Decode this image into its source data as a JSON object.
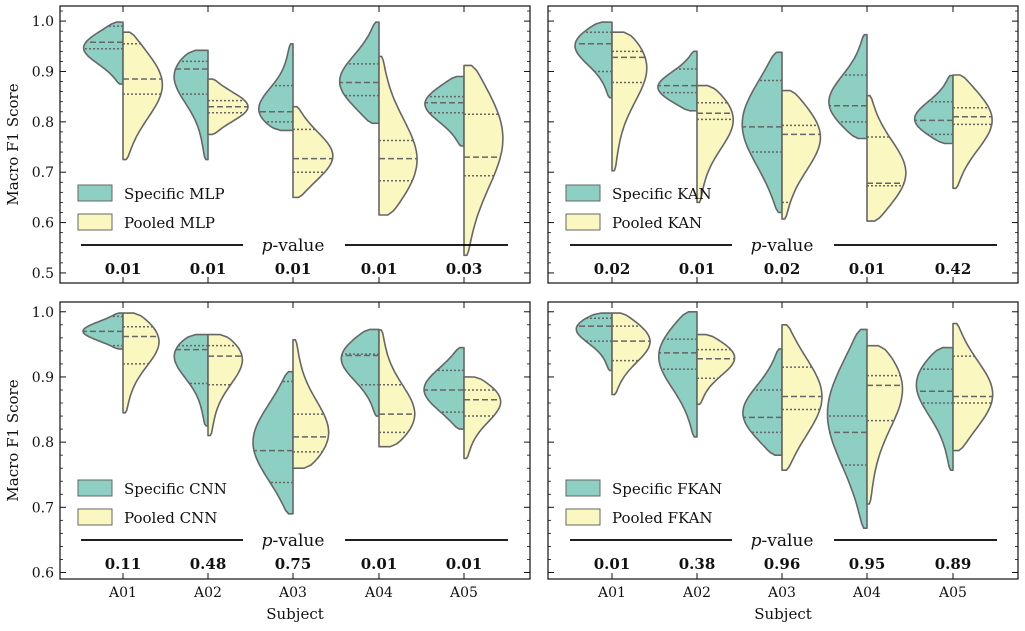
{
  "colors": {
    "specific": "#8ecfc3",
    "pooled": "#fbf7c0",
    "outline": "#666666",
    "quartile_line": "#666666",
    "axis": "#111111"
  },
  "chart_data": [
    {
      "type": "violin",
      "ylabel": "Macro F1 Score",
      "xlabel": "",
      "ylim": [
        0.48,
        1.03
      ],
      "yticks": [
        "0.5",
        "0.6",
        "0.7",
        "0.8",
        "0.9",
        "1.0"
      ],
      "ytick_values": [
        0.5,
        0.6,
        0.7,
        0.8,
        0.9,
        1.0
      ],
      "categories": [
        "A01",
        "A02",
        "A03",
        "A04",
        "A05"
      ],
      "show_xticklabels": false,
      "legend": [
        "Specific MLP",
        "Pooled MLP"
      ],
      "pvalue_title": "-value",
      "pvalue_italic": "p",
      "pvalues": [
        "0.01",
        "0.01",
        "0.01",
        "0.01",
        "0.03"
      ],
      "series": [
        {
          "name": "Specific MLP",
          "side": "left",
          "violins": [
            {
              "min": 0.875,
              "max": 0.998,
              "median": 0.958,
              "q1": 0.945,
              "q3": 0.99,
              "mode": 0.95
            },
            {
              "min": 0.725,
              "max": 0.942,
              "median": 0.905,
              "q1": 0.855,
              "q3": 0.92,
              "mode": 0.91
            },
            {
              "min": 0.783,
              "max": 0.955,
              "median": 0.82,
              "q1": 0.8,
              "q3": 0.872,
              "mode": 0.81
            },
            {
              "min": 0.797,
              "max": 0.998,
              "median": 0.878,
              "q1": 0.852,
              "q3": 0.915,
              "mode": 0.875
            },
            {
              "min": 0.752,
              "max": 0.89,
              "median": 0.838,
              "q1": 0.818,
              "q3": 0.85,
              "mode": 0.84
            }
          ]
        },
        {
          "name": "Pooled MLP",
          "side": "right",
          "violins": [
            {
              "min": 0.725,
              "max": 0.978,
              "median": 0.885,
              "q1": 0.855,
              "q3": 0.955,
              "mode": 0.88
            },
            {
              "min": 0.775,
              "max": 0.885,
              "median": 0.83,
              "q1": 0.818,
              "q3": 0.842,
              "mode": 0.83
            },
            {
              "min": 0.65,
              "max": 0.83,
              "median": 0.727,
              "q1": 0.7,
              "q3": 0.785,
              "mode": 0.73
            },
            {
              "min": 0.615,
              "max": 0.93,
              "median": 0.727,
              "q1": 0.683,
              "q3": 0.763,
              "mode": 0.71
            },
            {
              "min": 0.535,
              "max": 0.912,
              "median": 0.73,
              "q1": 0.693,
              "q3": 0.815,
              "mode": 0.78
            }
          ]
        }
      ]
    },
    {
      "type": "violin",
      "ylabel": "",
      "xlabel": "",
      "ylim": [
        0.48,
        1.03
      ],
      "yticks": [],
      "ytick_values": [
        0.5,
        0.6,
        0.7,
        0.8,
        0.9,
        1.0
      ],
      "categories": [
        "A01",
        "A02",
        "A03",
        "A04",
        "A05"
      ],
      "show_xticklabels": false,
      "legend": [
        "Specific KAN",
        "Pooled KAN"
      ],
      "pvalue_title": "-value",
      "pvalue_italic": "p",
      "pvalues": [
        "0.02",
        "0.01",
        "0.02",
        "0.01",
        "0.42"
      ],
      "series": [
        {
          "name": "Specific KAN",
          "side": "left",
          "violins": [
            {
              "min": 0.848,
              "max": 0.998,
              "median": 0.955,
              "q1": 0.9,
              "q3": 0.978,
              "mode": 0.96
            },
            {
              "min": 0.822,
              "max": 0.94,
              "median": 0.872,
              "q1": 0.858,
              "q3": 0.905,
              "mode": 0.865
            },
            {
              "min": 0.62,
              "max": 0.938,
              "median": 0.79,
              "q1": 0.74,
              "q3": 0.882,
              "mode": 0.8
            },
            {
              "min": 0.767,
              "max": 0.973,
              "median": 0.832,
              "q1": 0.8,
              "q3": 0.893,
              "mode": 0.83
            },
            {
              "min": 0.757,
              "max": 0.892,
              "median": 0.803,
              "q1": 0.775,
              "q3": 0.84,
              "mode": 0.8
            }
          ]
        },
        {
          "name": "Pooled KAN",
          "side": "right",
          "violins": [
            {
              "min": 0.703,
              "max": 0.978,
              "median": 0.928,
              "q1": 0.878,
              "q3": 0.94,
              "mode": 0.93
            },
            {
              "min": 0.64,
              "max": 0.872,
              "median": 0.817,
              "q1": 0.805,
              "q3": 0.838,
              "mode": 0.82
            },
            {
              "min": 0.607,
              "max": 0.862,
              "median": 0.775,
              "q1": 0.64,
              "q3": 0.793,
              "mode": 0.78
            },
            {
              "min": 0.603,
              "max": 0.852,
              "median": 0.678,
              "q1": 0.673,
              "q3": 0.77,
              "mode": 0.69
            },
            {
              "min": 0.668,
              "max": 0.893,
              "median": 0.81,
              "q1": 0.795,
              "q3": 0.828,
              "mode": 0.81
            }
          ]
        }
      ]
    },
    {
      "type": "violin",
      "ylabel": "Macro F1 Score",
      "xlabel": "Subject",
      "ylim": [
        0.59,
        1.015
      ],
      "yticks": [
        "0.6",
        "0.7",
        "0.8",
        "0.9",
        "1.0"
      ],
      "ytick_values": [
        0.6,
        0.7,
        0.8,
        0.9,
        1.0
      ],
      "categories": [
        "A01",
        "A02",
        "A03",
        "A04",
        "A05"
      ],
      "show_xticklabels": true,
      "legend": [
        "Specific CNN",
        "Pooled CNN"
      ],
      "pvalue_title": "-value",
      "pvalue_italic": "p",
      "pvalues": [
        "0.11",
        "0.48",
        "0.75",
        "0.01",
        "0.01"
      ],
      "series": [
        {
          "name": "Specific CNN",
          "side": "left",
          "violins": [
            {
              "min": 0.943,
              "max": 0.998,
              "median": 0.97,
              "q1": 0.948,
              "q3": 0.993,
              "mode": 0.97
            },
            {
              "min": 0.825,
              "max": 0.965,
              "median": 0.942,
              "q1": 0.89,
              "q3": 0.948,
              "mode": 0.945
            },
            {
              "min": 0.69,
              "max": 0.908,
              "median": 0.787,
              "q1": 0.738,
              "q3": 0.893,
              "mode": 0.8
            },
            {
              "min": 0.84,
              "max": 0.973,
              "median": 0.933,
              "q1": 0.888,
              "q3": 0.935,
              "mode": 0.935
            },
            {
              "min": 0.82,
              "max": 0.945,
              "median": 0.88,
              "q1": 0.846,
              "q3": 0.91,
              "mode": 0.88
            }
          ]
        },
        {
          "name": "Pooled CNN",
          "side": "right",
          "violins": [
            {
              "min": 0.845,
              "max": 0.998,
              "median": 0.962,
              "q1": 0.92,
              "q3": 0.977,
              "mode": 0.965
            },
            {
              "min": 0.81,
              "max": 0.965,
              "median": 0.932,
              "q1": 0.888,
              "q3": 0.948,
              "mode": 0.94
            },
            {
              "min": 0.76,
              "max": 0.957,
              "median": 0.808,
              "q1": 0.785,
              "q3": 0.843,
              "mode": 0.8
            },
            {
              "min": 0.793,
              "max": 0.972,
              "median": 0.843,
              "q1": 0.815,
              "q3": 0.888,
              "mode": 0.83
            },
            {
              "min": 0.775,
              "max": 0.9,
              "median": 0.865,
              "q1": 0.84,
              "q3": 0.88,
              "mode": 0.87
            }
          ]
        }
      ]
    },
    {
      "type": "violin",
      "ylabel": "",
      "xlabel": "Subject",
      "ylim": [
        0.59,
        1.015
      ],
      "yticks": [],
      "ytick_values": [
        0.6,
        0.7,
        0.8,
        0.9,
        1.0
      ],
      "categories": [
        "A01",
        "A02",
        "A03",
        "A04",
        "A05"
      ],
      "show_xticklabels": true,
      "legend": [
        "Specific FKAN",
        "Pooled FKAN"
      ],
      "pvalue_title": "-value",
      "pvalue_italic": "p",
      "pvalues": [
        "0.01",
        "0.38",
        "0.96",
        "0.95",
        "0.89"
      ],
      "series": [
        {
          "name": "Specific FKAN",
          "side": "left",
          "violins": [
            {
              "min": 0.91,
              "max": 0.998,
              "median": 0.978,
              "q1": 0.955,
              "q3": 0.99,
              "mode": 0.98
            },
            {
              "min": 0.808,
              "max": 1.0,
              "median": 0.937,
              "q1": 0.912,
              "q3": 0.958,
              "mode": 0.94
            },
            {
              "min": 0.78,
              "max": 0.943,
              "median": 0.838,
              "q1": 0.815,
              "q3": 0.88,
              "mode": 0.84
            },
            {
              "min": 0.668,
              "max": 0.973,
              "median": 0.815,
              "q1": 0.765,
              "q3": 0.84,
              "mode": 0.85
            },
            {
              "min": 0.757,
              "max": 0.945,
              "median": 0.878,
              "q1": 0.86,
              "q3": 0.912,
              "mode": 0.9
            }
          ]
        },
        {
          "name": "Pooled FKAN",
          "side": "right",
          "violins": [
            {
              "min": 0.873,
              "max": 0.998,
              "median": 0.955,
              "q1": 0.925,
              "q3": 0.978,
              "mode": 0.96
            },
            {
              "min": 0.858,
              "max": 0.965,
              "median": 0.928,
              "q1": 0.898,
              "q3": 0.942,
              "mode": 0.935
            },
            {
              "min": 0.757,
              "max": 0.98,
              "median": 0.87,
              "q1": 0.85,
              "q3": 0.915,
              "mode": 0.87
            },
            {
              "min": 0.705,
              "max": 0.948,
              "median": 0.887,
              "q1": 0.833,
              "q3": 0.902,
              "mode": 0.9
            },
            {
              "min": 0.787,
              "max": 0.982,
              "median": 0.87,
              "q1": 0.86,
              "q3": 0.932,
              "mode": 0.87
            }
          ]
        }
      ]
    }
  ]
}
